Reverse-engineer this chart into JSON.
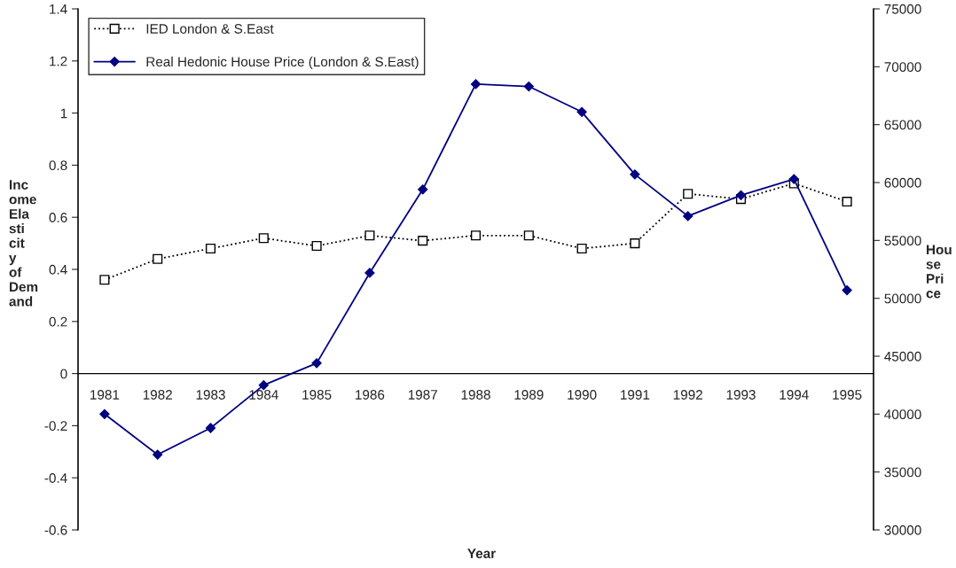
{
  "chart_data": {
    "type": "line",
    "categories": [
      "1981",
      "1982",
      "1983",
      "1984",
      "1985",
      "1986",
      "1987",
      "1988",
      "1989",
      "1990",
      "1991",
      "1992",
      "1993",
      "1994",
      "1995"
    ],
    "series": [
      {
        "name": "IED London & S.East",
        "color": "#000000",
        "marker": "square",
        "line_style": "dotted",
        "values": [
          0.36,
          0.44,
          0.48,
          0.52,
          0.49,
          0.53,
          0.51,
          0.53,
          0.53,
          0.48,
          0.5,
          0.69,
          0.67,
          0.73,
          0.66
        ]
      },
      {
        "name": "Real Hedonic House Price (London & S.East)",
        "color": "#000080",
        "marker": "diamond",
        "line_style": "solid",
        "axis": "y2",
        "values": [
          40000,
          36500,
          38800,
          42500,
          44400,
          52200,
          59400,
          68500,
          68300,
          66100,
          60700,
          57100,
          58900,
          60300,
          50700
        ]
      }
    ],
    "xlabel": "Year",
    "ylabel": "Income Elasticity of Demand",
    "y2label": "House Price",
    "ylim": [
      -0.6,
      1.4
    ],
    "yticks": [
      {
        "value": -0.6,
        "label": "-0.6"
      },
      {
        "value": -0.4,
        "label": "-0.4"
      },
      {
        "value": -0.2,
        "label": "-0.2"
      },
      0,
      0.2,
      0.4,
      0.6,
      0.8,
      1,
      1.2,
      1.4
    ],
    "y2lim": [
      30000,
      75000
    ],
    "y2ticks": [
      30000,
      35000,
      40000,
      45000,
      50000,
      55000,
      60000,
      65000,
      70000,
      75000
    ],
    "legend": "top left",
    "grid": false
  }
}
